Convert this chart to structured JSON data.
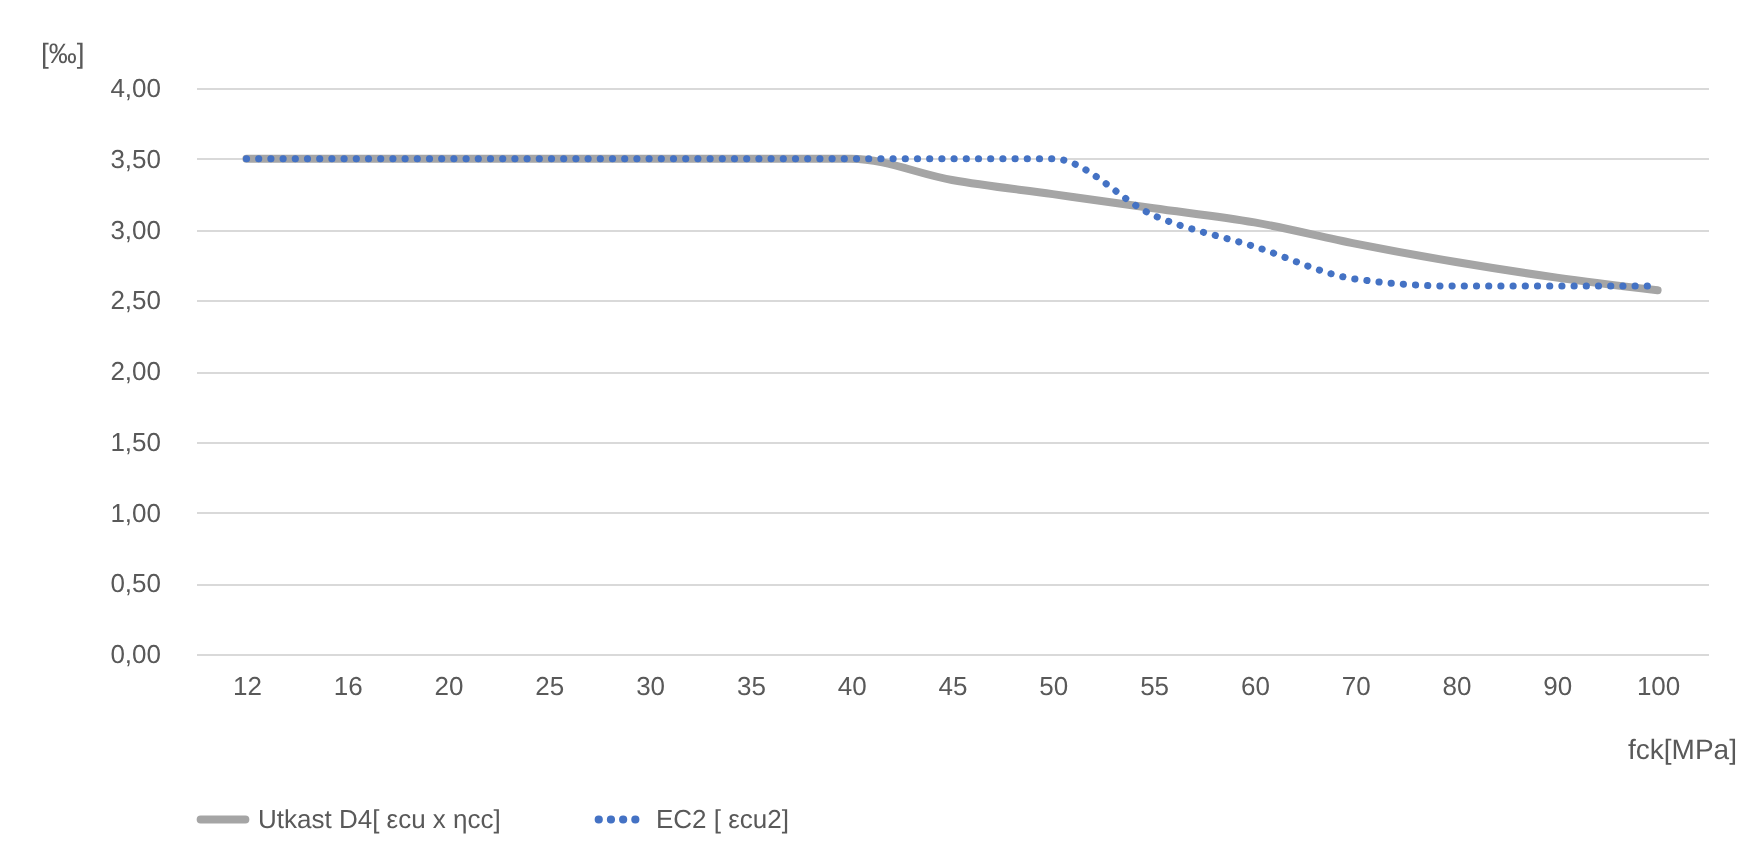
{
  "chart_data": {
    "type": "line",
    "ylabel": "[‰]",
    "xlabel": "fck[MPa]",
    "categories": [
      "12",
      "16",
      "20",
      "25",
      "30",
      "35",
      "40",
      "45",
      "50",
      "55",
      "60",
      "70",
      "80",
      "90",
      "100"
    ],
    "series": [
      {
        "name": "Utkast D4[ εcu x ηcc]",
        "color": "#a5a5a5",
        "line_style": "solid",
        "values": [
          3.5,
          3.5,
          3.5,
          3.5,
          3.5,
          3.5,
          3.5,
          3.35,
          3.25,
          3.15,
          3.05,
          2.9,
          2.77,
          2.66,
          2.57
        ]
      },
      {
        "name": "EC2 [ εcu2]",
        "color": "#4472c4",
        "line_style": "dotted",
        "values": [
          3.5,
          3.5,
          3.5,
          3.5,
          3.5,
          3.5,
          3.5,
          3.5,
          3.5,
          3.1,
          2.88,
          2.65,
          2.6,
          2.6,
          2.6
        ]
      }
    ],
    "ylim": [
      0,
      4
    ],
    "yticks": [
      {
        "value": 0,
        "label": "0,00"
      },
      {
        "value": 0.5,
        "label": "0,50"
      },
      {
        "value": 1,
        "label": "1,00"
      },
      {
        "value": 1.5,
        "label": "1,50"
      },
      {
        "value": 2,
        "label": "2,00"
      },
      {
        "value": 2.5,
        "label": "2,50"
      },
      {
        "value": 3,
        "label": "3,00"
      },
      {
        "value": 3.5,
        "label": "3,50"
      },
      {
        "value": 4,
        "label": "4,00"
      }
    ],
    "grid": "y",
    "legend": "bottom"
  }
}
